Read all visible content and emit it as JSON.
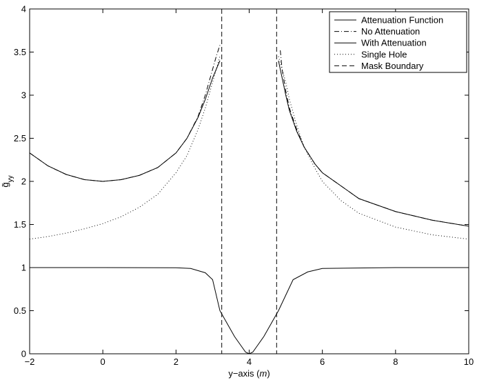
{
  "chart_data": {
    "type": "line",
    "xlabel": "y−axis (m)",
    "xlabel_prefix": "y−axis (",
    "xlabel_unit": "m",
    "xlabel_suffix": ")",
    "ylabel": "g̃yy",
    "ylabel_base": "g̃",
    "ylabel_sub": "yy",
    "xlim": [
      -2,
      10
    ],
    "ylim": [
      0,
      4
    ],
    "xticks": [
      "−2",
      "0",
      "2",
      "4",
      "6",
      "8",
      "10"
    ],
    "yticks": [
      "0",
      "0.5",
      "1",
      "1.5",
      "2",
      "2.5",
      "3",
      "3.5",
      "4"
    ],
    "grid": false,
    "legend_position": "top-right",
    "series": [
      {
        "name": "Attenuation Function",
        "style": "solid",
        "x": [
          -2,
          0,
          2,
          2.4,
          2.8,
          3.0,
          3.2,
          3.4,
          3.6,
          3.8,
          3.9,
          4.0,
          4.1,
          4.2,
          4.4,
          4.6,
          4.8,
          5.0,
          5.2,
          5.6,
          6.0,
          8,
          10
        ],
        "y": [
          1.0,
          1.0,
          0.998,
          0.99,
          0.94,
          0.86,
          0.5,
          0.35,
          0.2,
          0.08,
          0.02,
          0.0,
          0.02,
          0.08,
          0.2,
          0.35,
          0.5,
          0.68,
          0.86,
          0.95,
          0.99,
          1.0,
          1.0
        ]
      },
      {
        "name": "No Attenuation",
        "style": "dashdot",
        "segments": [
          {
            "x": [
              -2,
              -1.5,
              -1,
              -0.5,
              0,
              0.5,
              1,
              1.5,
              2,
              2.3,
              2.6,
              2.8,
              3.0,
              3.1,
              3.2
            ],
            "y": [
              2.33,
              2.18,
              2.08,
              2.02,
              2.0,
              2.02,
              2.07,
              2.16,
              2.33,
              2.5,
              2.75,
              3.0,
              3.3,
              3.45,
              3.58
            ]
          },
          {
            "x": [
              4.85,
              4.9,
              5.0,
              5.1,
              5.3,
              5.5,
              5.8,
              6,
              7,
              8,
              9,
              10
            ],
            "y": [
              3.52,
              3.3,
              3.05,
              2.85,
              2.6,
              2.4,
              2.2,
              2.1,
              1.8,
              1.65,
              1.55,
              1.48
            ]
          }
        ]
      },
      {
        "name": "With Attenuation",
        "style": "solid",
        "segments": [
          {
            "x": [
              -2,
              -1.5,
              -1,
              -0.5,
              0,
              0.5,
              1,
              1.5,
              2,
              2.3,
              2.6,
              2.8,
              3.0,
              3.1,
              3.2
            ],
            "y": [
              2.33,
              2.18,
              2.08,
              2.02,
              2.0,
              2.02,
              2.07,
              2.16,
              2.33,
              2.5,
              2.74,
              2.95,
              3.2,
              3.3,
              3.4
            ]
          },
          {
            "x": [
              4.8,
              4.9,
              5.0,
              5.1,
              5.3,
              5.5,
              5.8,
              6,
              7,
              8,
              9,
              10
            ],
            "y": [
              3.4,
              3.2,
              3.0,
              2.82,
              2.58,
              2.4,
              2.2,
              2.1,
              1.8,
              1.65,
              1.55,
              1.48
            ]
          }
        ]
      },
      {
        "name": "Single Hole",
        "style": "dotted",
        "segments": [
          {
            "x": [
              -2,
              -1.5,
              -1,
              -0.5,
              0,
              0.5,
              1,
              1.5,
              2,
              2.3,
              2.6,
              2.8,
              3.0,
              3.1,
              3.2
            ],
            "y": [
              1.33,
              1.36,
              1.4,
              1.45,
              1.51,
              1.59,
              1.7,
              1.85,
              2.1,
              2.3,
              2.6,
              2.85,
              3.15,
              3.3,
              3.45
            ]
          },
          {
            "x": [
              4.8,
              4.9,
              5.0,
              5.1,
              5.3,
              5.5,
              5.8,
              6,
              6.5,
              7,
              8,
              9,
              10
            ],
            "y": [
              3.45,
              3.3,
              3.15,
              2.95,
              2.65,
              2.4,
              2.15,
              2.0,
              1.78,
              1.63,
              1.47,
              1.38,
              1.33
            ]
          }
        ]
      },
      {
        "name": "Mask Boundary",
        "style": "dashed",
        "vlines": [
          3.25,
          4.75
        ]
      }
    ]
  }
}
